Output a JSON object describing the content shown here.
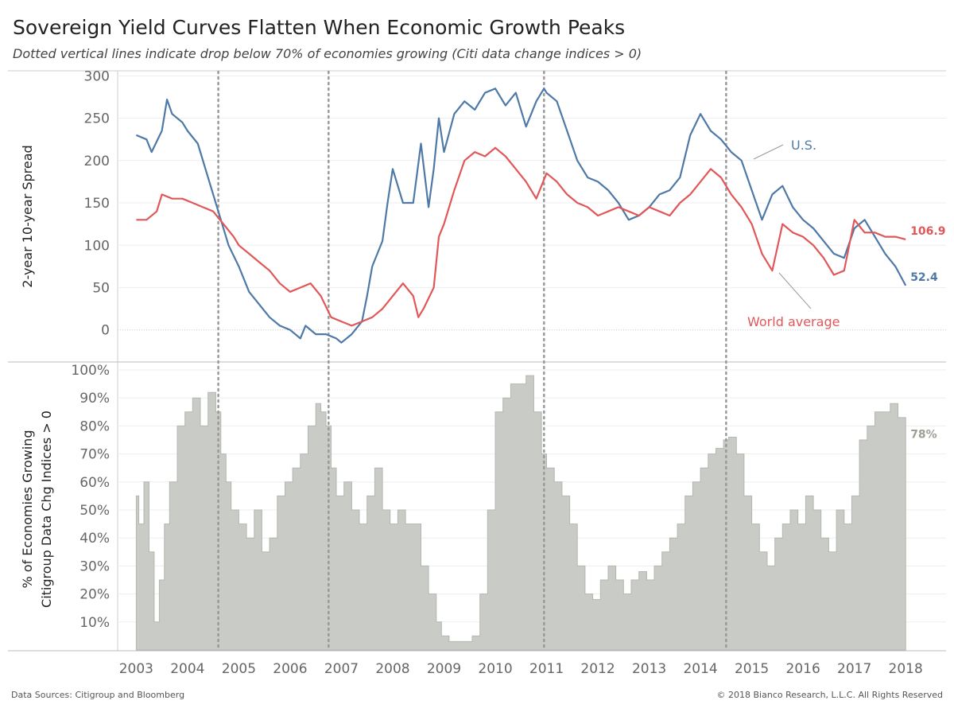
{
  "title": "Sovereign Yield Curves Flatten  When Economic Growth Peaks",
  "subtitle": "Dotted vertical lines indicate drop below 70% of economies growing (Citi data change indices > 0)",
  "source": "Data Sources: Citigroup and Bloomberg",
  "copyright": "© 2018 Bianco Research, L.L.C. All Rights Reserved",
  "colors": {
    "us": "#4e79a7",
    "world": "#e15759",
    "growth": "#c9ccc6",
    "growth_edge": "#b3b7b0",
    "grid": "#eeeeee",
    "axis": "#bbbbbb",
    "vline": "#999999"
  },
  "chart_data": [
    {
      "type": "line",
      "ylabel": "2-year 10-year Spread",
      "ylim": [
        -35,
        305
      ],
      "yticks": [
        0,
        50,
        100,
        150,
        200,
        250,
        300
      ],
      "xlim": [
        2002.7,
        2018.4
      ],
      "xticks": [
        2003,
        2004,
        2005,
        2006,
        2007,
        2008,
        2009,
        2010,
        2011,
        2012,
        2013,
        2014,
        2015,
        2016,
        2017,
        2018
      ],
      "vlines": [
        2004.6,
        2006.75,
        2010.95,
        2014.5
      ],
      "series": [
        {
          "name": "U.S.",
          "end_label": "52.4",
          "x": [
            2003.0,
            2003.2,
            2003.3,
            2003.5,
            2003.6,
            2003.7,
            2003.9,
            2004.0,
            2004.2,
            2004.4,
            2004.6,
            2004.8,
            2005.0,
            2005.2,
            2005.4,
            2005.6,
            2005.8,
            2006.0,
            2006.2,
            2006.3,
            2006.5,
            2006.7,
            2006.9,
            2007.0,
            2007.2,
            2007.4,
            2007.5,
            2007.6,
            2007.8,
            2007.9,
            2008.0,
            2008.2,
            2008.4,
            2008.55,
            2008.7,
            2008.8,
            2008.9,
            2009.0,
            2009.2,
            2009.4,
            2009.6,
            2009.8,
            2010.0,
            2010.2,
            2010.4,
            2010.6,
            2010.8,
            2010.95,
            2011.0,
            2011.2,
            2011.4,
            2011.6,
            2011.8,
            2012.0,
            2012.2,
            2012.4,
            2012.6,
            2012.8,
            2013.0,
            2013.2,
            2013.4,
            2013.6,
            2013.8,
            2014.0,
            2014.2,
            2014.4,
            2014.6,
            2014.8,
            2015.0,
            2015.2,
            2015.4,
            2015.6,
            2015.8,
            2016.0,
            2016.2,
            2016.4,
            2016.6,
            2016.8,
            2017.0,
            2017.2,
            2017.4,
            2017.6,
            2017.8,
            2018.0
          ],
          "y": [
            230,
            225,
            210,
            235,
            272,
            255,
            245,
            235,
            220,
            180,
            140,
            100,
            75,
            45,
            30,
            15,
            5,
            0,
            -10,
            5,
            -5,
            -5,
            -10,
            -15,
            -5,
            10,
            40,
            75,
            105,
            150,
            190,
            150,
            150,
            220,
            145,
            190,
            250,
            210,
            255,
            270,
            260,
            280,
            285,
            265,
            280,
            240,
            270,
            285,
            280,
            270,
            235,
            200,
            180,
            175,
            165,
            150,
            130,
            135,
            145,
            160,
            165,
            180,
            230,
            255,
            235,
            225,
            210,
            200,
            165,
            130,
            160,
            170,
            145,
            130,
            120,
            105,
            90,
            85,
            120,
            130,
            110,
            90,
            75,
            52.4
          ]
        },
        {
          "name": "World average",
          "end_label": "106.9",
          "x": [
            2003.0,
            2003.2,
            2003.4,
            2003.5,
            2003.7,
            2003.9,
            2004.1,
            2004.3,
            2004.5,
            2004.7,
            2004.9,
            2005.0,
            2005.2,
            2005.4,
            2005.6,
            2005.8,
            2006.0,
            2006.2,
            2006.4,
            2006.6,
            2006.8,
            2007.0,
            2007.2,
            2007.4,
            2007.6,
            2007.8,
            2008.0,
            2008.2,
            2008.4,
            2008.5,
            2008.6,
            2008.8,
            2008.9,
            2009.0,
            2009.2,
            2009.4,
            2009.6,
            2009.8,
            2010.0,
            2010.2,
            2010.4,
            2010.6,
            2010.8,
            2011.0,
            2011.2,
            2011.4,
            2011.6,
            2011.8,
            2012.0,
            2012.2,
            2012.4,
            2012.6,
            2012.8,
            2013.0,
            2013.2,
            2013.4,
            2013.6,
            2013.8,
            2014.0,
            2014.2,
            2014.4,
            2014.6,
            2014.8,
            2015.0,
            2015.2,
            2015.4,
            2015.6,
            2015.8,
            2016.0,
            2016.2,
            2016.4,
            2016.6,
            2016.8,
            2017.0,
            2017.2,
            2017.4,
            2017.6,
            2017.8,
            2018.0
          ],
          "y": [
            130,
            130,
            140,
            160,
            155,
            155,
            150,
            145,
            140,
            125,
            110,
            100,
            90,
            80,
            70,
            55,
            45,
            50,
            55,
            40,
            15,
            10,
            5,
            10,
            15,
            25,
            40,
            55,
            40,
            15,
            25,
            50,
            110,
            125,
            165,
            200,
            210,
            205,
            215,
            205,
            190,
            175,
            155,
            185,
            175,
            160,
            150,
            145,
            135,
            140,
            145,
            140,
            135,
            145,
            140,
            135,
            150,
            160,
            175,
            190,
            180,
            160,
            145,
            125,
            90,
            70,
            125,
            115,
            110,
            100,
            85,
            65,
            70,
            130,
            115,
            115,
            110,
            110,
            106.9
          ]
        }
      ],
      "annotations": [
        "U.S.",
        "World average"
      ]
    },
    {
      "type": "area",
      "ylabel": "% of Economies Growing\nCitigroup Data Chg Indices > 0",
      "ylim": [
        0,
        102
      ],
      "yticks": [
        10,
        20,
        30,
        40,
        50,
        60,
        70,
        80,
        90,
        100
      ],
      "ytick_labels": [
        "10%",
        "20%",
        "30%",
        "40%",
        "50%",
        "60%",
        "70%",
        "80%",
        "90%",
        "100%"
      ],
      "xlim": [
        2002.7,
        2018.4
      ],
      "xticks": [
        2003,
        2004,
        2005,
        2006,
        2007,
        2008,
        2009,
        2010,
        2011,
        2012,
        2013,
        2014,
        2015,
        2016,
        2017,
        2018
      ],
      "vlines": [
        2004.6,
        2006.75,
        2010.95,
        2014.5
      ],
      "series": [
        {
          "name": "",
          "end_label": "78%",
          "x": [
            2003.0,
            2003.05,
            2003.15,
            2003.25,
            2003.35,
            2003.45,
            2003.55,
            2003.65,
            2003.8,
            2003.95,
            2004.1,
            2004.25,
            2004.4,
            2004.55,
            2004.65,
            2004.75,
            2004.85,
            2005.0,
            2005.15,
            2005.3,
            2005.45,
            2005.6,
            2005.75,
            2005.9,
            2006.05,
            2006.2,
            2006.35,
            2006.5,
            2006.6,
            2006.7,
            2006.8,
            2006.9,
            2007.05,
            2007.2,
            2007.35,
            2007.5,
            2007.65,
            2007.8,
            2007.95,
            2008.1,
            2008.25,
            2008.4,
            2008.55,
            2008.7,
            2008.85,
            2008.95,
            2009.1,
            2009.25,
            2009.4,
            2009.55,
            2009.7,
            2009.85,
            2010.0,
            2010.15,
            2010.3,
            2010.45,
            2010.6,
            2010.75,
            2010.9,
            2011.0,
            2011.15,
            2011.3,
            2011.45,
            2011.6,
            2011.75,
            2011.9,
            2012.05,
            2012.2,
            2012.35,
            2012.5,
            2012.65,
            2012.8,
            2012.95,
            2013.1,
            2013.25,
            2013.4,
            2013.55,
            2013.7,
            2013.85,
            2014.0,
            2014.15,
            2014.3,
            2014.45,
            2014.55,
            2014.7,
            2014.85,
            2015.0,
            2015.15,
            2015.3,
            2015.45,
            2015.6,
            2015.75,
            2015.9,
            2016.05,
            2016.2,
            2016.35,
            2016.5,
            2016.65,
            2016.8,
            2016.95,
            2017.1,
            2017.25,
            2017.4,
            2017.55,
            2017.7,
            2017.85,
            2018.0
          ],
          "y": [
            55,
            45,
            60,
            35,
            10,
            25,
            45,
            60,
            80,
            85,
            90,
            80,
            92,
            85,
            70,
            60,
            50,
            45,
            40,
            50,
            35,
            40,
            55,
            60,
            65,
            70,
            80,
            88,
            85,
            80,
            65,
            55,
            60,
            50,
            45,
            55,
            65,
            50,
            45,
            50,
            45,
            45,
            30,
            20,
            10,
            5,
            3,
            3,
            3,
            5,
            20,
            50,
            85,
            90,
            95,
            95,
            98,
            85,
            70,
            65,
            60,
            55,
            45,
            30,
            20,
            18,
            25,
            30,
            25,
            20,
            25,
            28,
            25,
            30,
            35,
            40,
            45,
            55,
            60,
            65,
            70,
            72,
            75,
            76,
            70,
            55,
            45,
            35,
            30,
            40,
            45,
            50,
            45,
            55,
            50,
            40,
            35,
            50,
            45,
            55,
            75,
            80,
            85,
            85,
            88,
            83,
            78
          ]
        }
      ]
    }
  ]
}
